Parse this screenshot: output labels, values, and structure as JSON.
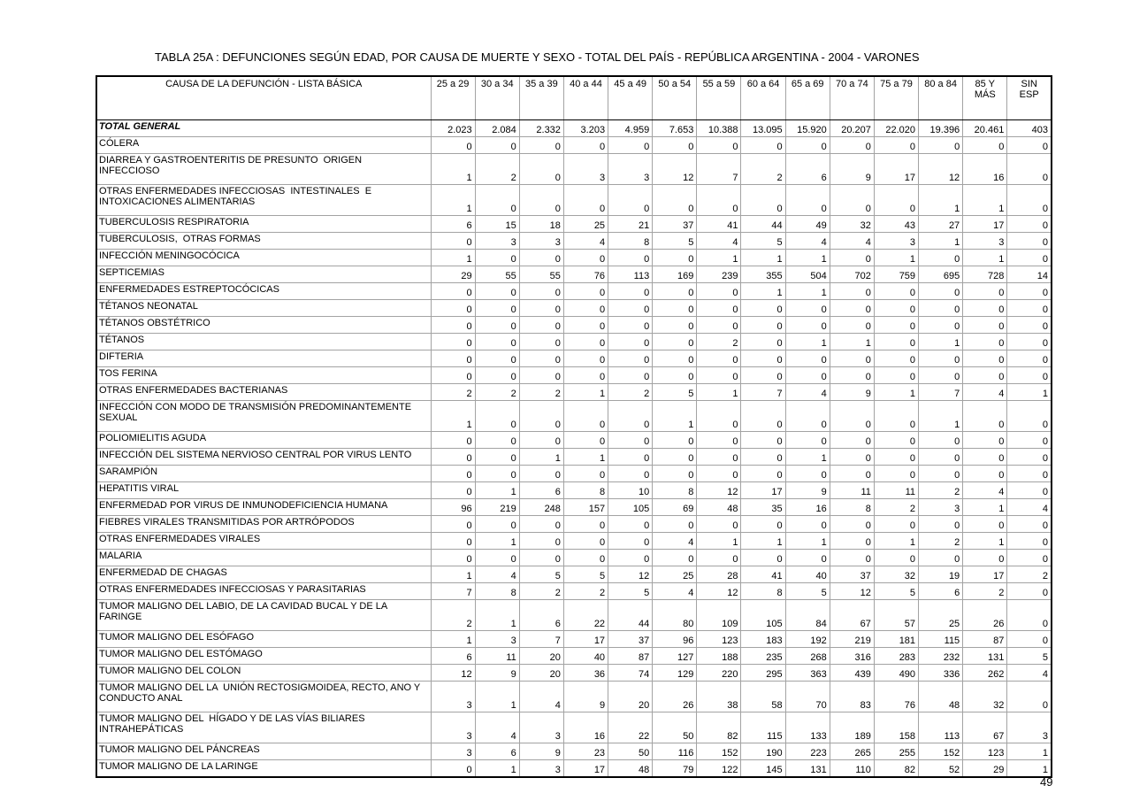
{
  "page": {
    "title": "TABLA 25A : DEFUNCIONES SEGÚN EDAD, POR CAUSA DE MUERTE Y SEXO - TOTAL DEL PAÍS - REPÚBLICA ARGENTINA - 2004 - VARONES",
    "page_number": "49"
  },
  "table": {
    "header_label": "CAUSA DE LA DEFUNCIÓN - LISTA BÁSICA",
    "columns": [
      {
        "lines": [
          "25 a 29"
        ]
      },
      {
        "lines": [
          "30 a 34"
        ]
      },
      {
        "lines": [
          "35 a 39"
        ]
      },
      {
        "lines": [
          "40 a 44"
        ]
      },
      {
        "lines": [
          "45 a 49"
        ]
      },
      {
        "lines": [
          "50 a 54"
        ]
      },
      {
        "lines": [
          "55 a 59"
        ]
      },
      {
        "lines": [
          "60 a 64"
        ]
      },
      {
        "lines": [
          "65 a 69"
        ]
      },
      {
        "lines": [
          "70 a 74"
        ]
      },
      {
        "lines": [
          "75 a 79"
        ]
      },
      {
        "lines": [
          "80 a 84"
        ]
      },
      {
        "lines": [
          "85 Y",
          "MÁS"
        ]
      },
      {
        "lines": [
          "SIN",
          "ESP"
        ]
      }
    ],
    "rows": [
      {
        "label_lines": [
          "TOTAL GENERAL"
        ],
        "bold": true,
        "tall": false,
        "values": [
          "2.023",
          "2.084",
          "2.332",
          "3.203",
          "4.959",
          "7.653",
          "10.388",
          "13.095",
          "15.920",
          "20.207",
          "22.020",
          "19.396",
          "20.461",
          "403"
        ]
      },
      {
        "label_lines": [
          "CÓLERA"
        ],
        "bold": false,
        "tall": false,
        "values": [
          "0",
          "0",
          "0",
          "0",
          "0",
          "0",
          "0",
          "0",
          "0",
          "0",
          "0",
          "0",
          "0",
          "0"
        ]
      },
      {
        "label_lines": [
          "DIARREA Y GASTROENTERITIS DE PRESUNTO  ORIGEN  INFECCIOSO"
        ],
        "bold": false,
        "tall": true,
        "values": [
          "1",
          "2",
          "0",
          "3",
          "3",
          "12",
          "7",
          "2",
          "6",
          "9",
          "17",
          "12",
          "16",
          "0"
        ]
      },
      {
        "label_lines": [
          "OTRAS ENFERMEDADES INFECCIOSAS  INTESTINALES  E",
          "INTOXICACIONES ALIMENTARIAS"
        ],
        "bold": false,
        "tall": true,
        "values": [
          "1",
          "0",
          "0",
          "0",
          "0",
          "0",
          "0",
          "0",
          "0",
          "0",
          "0",
          "1",
          "1",
          "0"
        ]
      },
      {
        "label_lines": [
          "TUBERCULOSIS RESPIRATORIA"
        ],
        "bold": false,
        "tall": false,
        "values": [
          "6",
          "15",
          "18",
          "25",
          "21",
          "37",
          "41",
          "44",
          "49",
          "32",
          "43",
          "27",
          "17",
          "0"
        ]
      },
      {
        "label_lines": [
          "TUBERCULOSIS,  OTRAS FORMAS"
        ],
        "bold": false,
        "tall": false,
        "values": [
          "0",
          "3",
          "3",
          "4",
          "8",
          "5",
          "4",
          "5",
          "4",
          "4",
          "3",
          "1",
          "3",
          "0"
        ]
      },
      {
        "label_lines": [
          "INFECCIÓN MENINGOCÓCICA"
        ],
        "bold": false,
        "tall": false,
        "values": [
          "1",
          "0",
          "0",
          "0",
          "0",
          "0",
          "1",
          "1",
          "1",
          "0",
          "1",
          "0",
          "1",
          "0"
        ]
      },
      {
        "label_lines": [
          "SEPTICEMIAS"
        ],
        "bold": false,
        "tall": false,
        "values": [
          "29",
          "55",
          "55",
          "76",
          "113",
          "169",
          "239",
          "355",
          "504",
          "702",
          "759",
          "695",
          "728",
          "14"
        ]
      },
      {
        "label_lines": [
          "ENFERMEDADES ESTREPTOCÓCICAS"
        ],
        "bold": false,
        "tall": false,
        "values": [
          "0",
          "0",
          "0",
          "0",
          "0",
          "0",
          "0",
          "1",
          "1",
          "0",
          "0",
          "0",
          "0",
          "0"
        ]
      },
      {
        "label_lines": [
          "TÉTANOS NEONATAL"
        ],
        "bold": false,
        "tall": false,
        "values": [
          "0",
          "0",
          "0",
          "0",
          "0",
          "0",
          "0",
          "0",
          "0",
          "0",
          "0",
          "0",
          "0",
          "0"
        ]
      },
      {
        "label_lines": [
          "TÉTANOS OBSTÉTRICO"
        ],
        "bold": false,
        "tall": false,
        "values": [
          "0",
          "0",
          "0",
          "0",
          "0",
          "0",
          "0",
          "0",
          "0",
          "0",
          "0",
          "0",
          "0",
          "0"
        ]
      },
      {
        "label_lines": [
          "TÉTANOS"
        ],
        "bold": false,
        "tall": false,
        "values": [
          "0",
          "0",
          "0",
          "0",
          "0",
          "0",
          "2",
          "0",
          "1",
          "1",
          "0",
          "1",
          "0",
          "0"
        ]
      },
      {
        "label_lines": [
          "DIFTERIA"
        ],
        "bold": false,
        "tall": false,
        "values": [
          "0",
          "0",
          "0",
          "0",
          "0",
          "0",
          "0",
          "0",
          "0",
          "0",
          "0",
          "0",
          "0",
          "0"
        ]
      },
      {
        "label_lines": [
          "TOS FERINA"
        ],
        "bold": false,
        "tall": false,
        "values": [
          "0",
          "0",
          "0",
          "0",
          "0",
          "0",
          "0",
          "0",
          "0",
          "0",
          "0",
          "0",
          "0",
          "0"
        ]
      },
      {
        "label_lines": [
          "OTRAS ENFERMEDADES BACTERIANAS"
        ],
        "bold": false,
        "tall": false,
        "values": [
          "2",
          "2",
          "2",
          "1",
          "2",
          "5",
          "1",
          "7",
          "4",
          "9",
          "1",
          "7",
          "4",
          "1"
        ]
      },
      {
        "label_lines": [
          "INFECCIÓN CON MODO DE TRANSMISIÓN PREDOMINANTEMENTE",
          "SEXUAL"
        ],
        "bold": false,
        "tall": true,
        "values": [
          "1",
          "0",
          "0",
          "0",
          "0",
          "1",
          "0",
          "0",
          "0",
          "0",
          "0",
          "1",
          "0",
          "0"
        ]
      },
      {
        "label_lines": [
          "POLIOMIELITIS AGUDA"
        ],
        "bold": false,
        "tall": false,
        "values": [
          "0",
          "0",
          "0",
          "0",
          "0",
          "0",
          "0",
          "0",
          "0",
          "0",
          "0",
          "0",
          "0",
          "0"
        ]
      },
      {
        "label_lines": [
          "INFECCIÓN DEL SISTEMA NERVIOSO CENTRAL POR VIRUS LENTO"
        ],
        "bold": false,
        "tall": false,
        "values": [
          "0",
          "0",
          "1",
          "1",
          "0",
          "0",
          "0",
          "0",
          "1",
          "0",
          "0",
          "0",
          "0",
          "0"
        ]
      },
      {
        "label_lines": [
          "SARAMPIÓN"
        ],
        "bold": false,
        "tall": false,
        "values": [
          "0",
          "0",
          "0",
          "0",
          "0",
          "0",
          "0",
          "0",
          "0",
          "0",
          "0",
          "0",
          "0",
          "0"
        ]
      },
      {
        "label_lines": [
          "HEPATITIS VIRAL"
        ],
        "bold": false,
        "tall": false,
        "values": [
          "0",
          "1",
          "6",
          "8",
          "10",
          "8",
          "12",
          "17",
          "9",
          "11",
          "11",
          "2",
          "4",
          "0"
        ]
      },
      {
        "label_lines": [
          "ENFERMEDAD POR VIRUS DE INMUNODEFICIENCIA HUMANA"
        ],
        "bold": false,
        "tall": false,
        "values": [
          "96",
          "219",
          "248",
          "157",
          "105",
          "69",
          "48",
          "35",
          "16",
          "8",
          "2",
          "3",
          "1",
          "4"
        ]
      },
      {
        "label_lines": [
          "FIEBRES VIRALES TRANSMITIDAS POR ARTRÓPODOS"
        ],
        "bold": false,
        "tall": false,
        "values": [
          "0",
          "0",
          "0",
          "0",
          "0",
          "0",
          "0",
          "0",
          "0",
          "0",
          "0",
          "0",
          "0",
          "0"
        ]
      },
      {
        "label_lines": [
          "OTRAS ENFERMEDADES VIRALES"
        ],
        "bold": false,
        "tall": false,
        "values": [
          "0",
          "1",
          "0",
          "0",
          "0",
          "4",
          "1",
          "1",
          "1",
          "0",
          "1",
          "2",
          "1",
          "0"
        ]
      },
      {
        "label_lines": [
          "MALARIA"
        ],
        "bold": false,
        "tall": false,
        "values": [
          "0",
          "0",
          "0",
          "0",
          "0",
          "0",
          "0",
          "0",
          "0",
          "0",
          "0",
          "0",
          "0",
          "0"
        ]
      },
      {
        "label_lines": [
          "ENFERMEDAD DE CHAGAS"
        ],
        "bold": false,
        "tall": false,
        "values": [
          "1",
          "4",
          "5",
          "5",
          "12",
          "25",
          "28",
          "41",
          "40",
          "37",
          "32",
          "19",
          "17",
          "2"
        ]
      },
      {
        "label_lines": [
          "OTRAS ENFERMEDADES INFECCIOSAS Y PARASITARIAS"
        ],
        "bold": false,
        "tall": false,
        "values": [
          "7",
          "8",
          "2",
          "2",
          "5",
          "4",
          "12",
          "8",
          "5",
          "12",
          "5",
          "6",
          "2",
          "0"
        ]
      },
      {
        "label_lines": [
          "TUMOR MALIGNO DEL LABIO, DE LA CAVIDAD BUCAL Y DE LA FARINGE"
        ],
        "bold": false,
        "tall": true,
        "values": [
          "2",
          "1",
          "6",
          "22",
          "44",
          "80",
          "109",
          "105",
          "84",
          "67",
          "57",
          "25",
          "26",
          "0"
        ]
      },
      {
        "label_lines": [
          "TUMOR MALIGNO DEL ESÓFAGO"
        ],
        "bold": false,
        "tall": false,
        "values": [
          "1",
          "3",
          "7",
          "17",
          "37",
          "96",
          "123",
          "183",
          "192",
          "219",
          "181",
          "115",
          "87",
          "0"
        ]
      },
      {
        "label_lines": [
          "TUMOR MALIGNO DEL ESTÓMAGO"
        ],
        "bold": false,
        "tall": false,
        "values": [
          "6",
          "11",
          "20",
          "40",
          "87",
          "127",
          "188",
          "235",
          "268",
          "316",
          "283",
          "232",
          "131",
          "5"
        ]
      },
      {
        "label_lines": [
          "TUMOR MALIGNO DEL COLON"
        ],
        "bold": false,
        "tall": false,
        "values": [
          "12",
          "9",
          "20",
          "36",
          "74",
          "129",
          "220",
          "295",
          "363",
          "439",
          "490",
          "336",
          "262",
          "4"
        ]
      },
      {
        "label_lines": [
          "TUMOR MALIGNO DEL LA  UNIÓN RECTOSIGMOIDEA, RECTO, ANO Y",
          "CONDUCTO ANAL"
        ],
        "bold": false,
        "tall": true,
        "values": [
          "3",
          "1",
          "4",
          "9",
          "20",
          "26",
          "38",
          "58",
          "70",
          "83",
          "76",
          "48",
          "32",
          "0"
        ]
      },
      {
        "label_lines": [
          "TUMOR MALIGNO DEL  HÍGADO Y DE LAS VÍAS BILIARES",
          "INTRAHEPÁTICAS"
        ],
        "bold": false,
        "tall": true,
        "values": [
          "3",
          "4",
          "3",
          "16",
          "22",
          "50",
          "82",
          "115",
          "133",
          "189",
          "158",
          "113",
          "67",
          "3"
        ]
      },
      {
        "label_lines": [
          "TUMOR MALIGNO DEL PÁNCREAS"
        ],
        "bold": false,
        "tall": false,
        "values": [
          "3",
          "6",
          "9",
          "23",
          "50",
          "116",
          "152",
          "190",
          "223",
          "265",
          "255",
          "152",
          "123",
          "1"
        ]
      },
      {
        "label_lines": [
          "TUMOR MALIGNO DE LA LARINGE"
        ],
        "bold": false,
        "tall": false,
        "values": [
          "0",
          "1",
          "3",
          "17",
          "48",
          "79",
          "122",
          "145",
          "131",
          "110",
          "82",
          "52",
          "29",
          "1"
        ]
      }
    ]
  }
}
